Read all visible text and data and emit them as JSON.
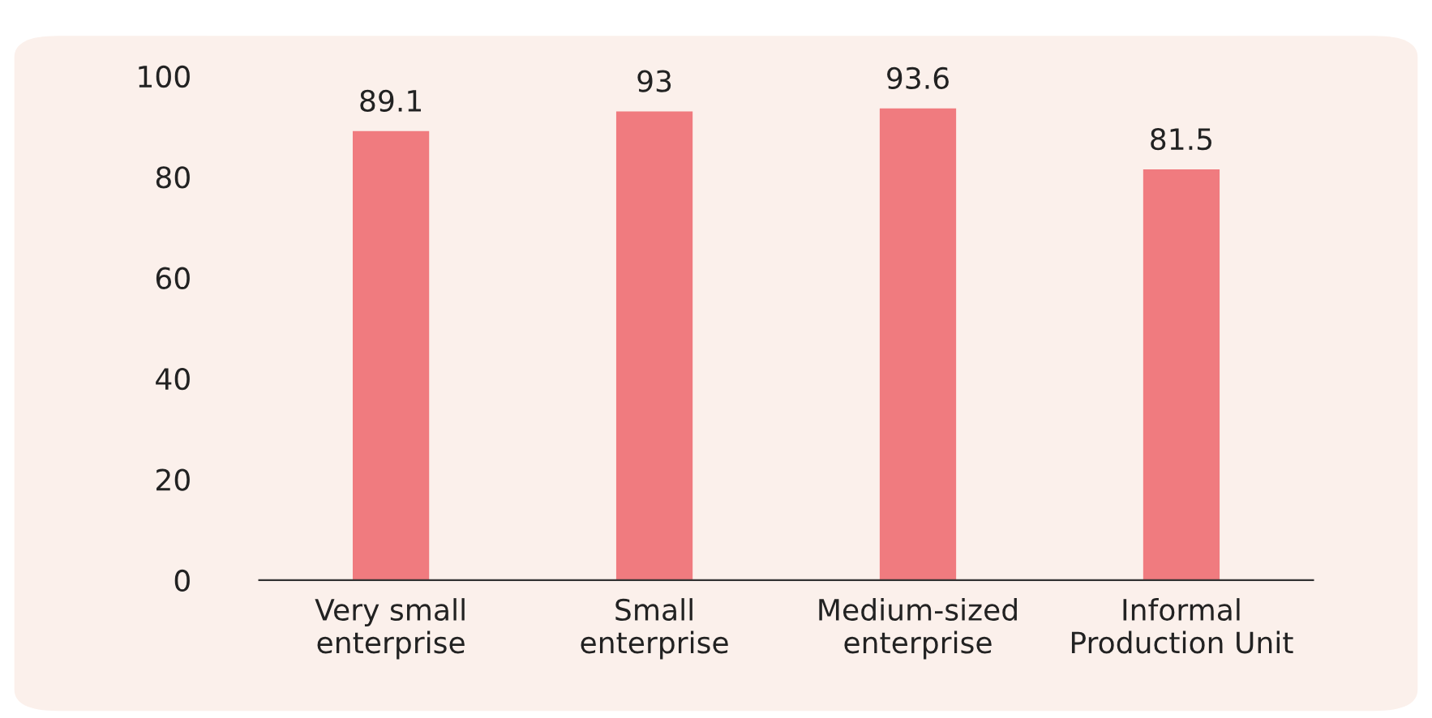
{
  "chart_data": {
    "type": "bar",
    "categories": [
      "Very small\nenterprise",
      "Small\nenterprise",
      "Medium-sized\nenterprise",
      "Informal\nProduction Unit"
    ],
    "values": [
      89.1,
      93,
      93.6,
      81.5
    ],
    "color": "#f07b7f",
    "ylim": [
      0,
      100
    ],
    "yticks": [
      0,
      20,
      40,
      60,
      80,
      100
    ],
    "data_labels": true,
    "grid": false,
    "legend": false
  }
}
